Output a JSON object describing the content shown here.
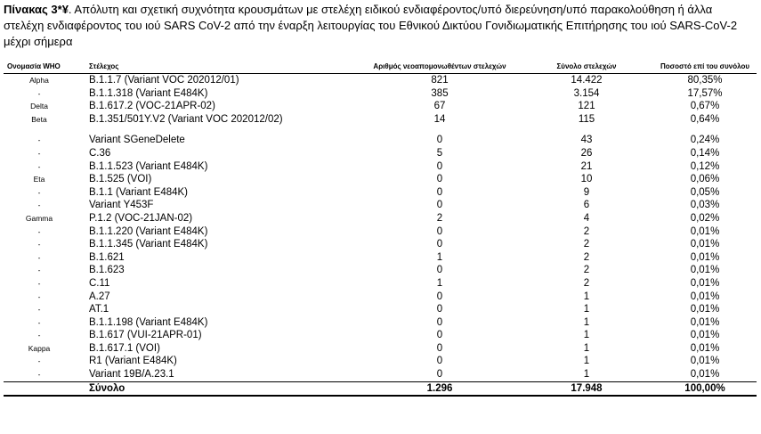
{
  "caption": {
    "label": "Πίνακας 3*¥",
    "text": ". Απόλυτη και σχετική συχνότητα κρουσμάτων με στελέχη ειδικού ενδιαφέροντος/υπό διερεύνηση/υπό παρακολούθηση ή άλλα στελέχη ενδιαφέροντος του ιού SARS CoV-2 από την έναρξη λειτουργίας του Εθνικού Δικτύου Γονιδιωματικής Επιτήρησης του ιού SARS-CoV-2 μέχρι σήμερα"
  },
  "table": {
    "header": [
      "Ονομασία WHO",
      "Στέλεχος",
      "Αριθμός νεοαπομονωθέντων στελεχών",
      "Σύνολο στελεχών",
      "Ποσοστό επί του συνόλου"
    ],
    "rows": [
      [
        "Alpha",
        "B.1.1.7 (Variant VOC 202012/01)",
        "821",
        "14.422",
        "80,35%"
      ],
      [
        "-",
        "B.1.1.318 (Variant E484K)",
        "385",
        "3.154",
        "17,57%"
      ],
      [
        "Delta",
        "B.1.617.2 (VOC-21APR-02)",
        "67",
        "121",
        "0,67%"
      ],
      [
        "Beta",
        "B.1.351/501Y.V2 (Variant VOC 202012/02)",
        "14",
        "115",
        "0,64%"
      ],
      [
        "-",
        "Variant SGeneDelete",
        "0",
        "43",
        "0,24%"
      ],
      [
        "-",
        "C.36",
        "5",
        "26",
        "0,14%"
      ],
      [
        "-",
        "B.1.1.523 (Variant E484K)",
        "0",
        "21",
        "0,12%"
      ],
      [
        "Eta",
        "B.1.525 (VOI)",
        "0",
        "10",
        "0,06%"
      ],
      [
        "-",
        "B.1.1 (Variant E484K)",
        "0",
        "9",
        "0,05%"
      ],
      [
        "-",
        "Variant Y453F",
        "0",
        "6",
        "0,03%"
      ],
      [
        "Gamma",
        "P.1.2 (VOC-21JAN-02)",
        "2",
        "4",
        "0,02%"
      ],
      [
        "-",
        "B.1.1.220 (Variant E484K)",
        "0",
        "2",
        "0,01%"
      ],
      [
        "-",
        "B.1.1.345 (Variant E484K)",
        "0",
        "2",
        "0,01%"
      ],
      [
        "-",
        "B.1.621",
        "1",
        "2",
        "0,01%"
      ],
      [
        "-",
        "B.1.623",
        "0",
        "2",
        "0,01%"
      ],
      [
        "-",
        "C.11",
        "1",
        "2",
        "0,01%"
      ],
      [
        "-",
        "A.27",
        "0",
        "1",
        "0,01%"
      ],
      [
        "-",
        "AT.1",
        "0",
        "1",
        "0,01%"
      ],
      [
        "-",
        "B.1.1.198 (Variant E484K)",
        "0",
        "1",
        "0,01%"
      ],
      [
        "-",
        "B.1.617 (VUI-21APR-01)",
        "0",
        "1",
        "0,01%"
      ],
      [
        "Kappa",
        "B.1.617.1 (VOI)",
        "0",
        "1",
        "0,01%"
      ],
      [
        "-",
        "R1 (Variant E484K)",
        "0",
        "1",
        "0,01%"
      ],
      [
        "-",
        "Variant 19B/A.23.1",
        "0",
        "1",
        "0,01%"
      ]
    ],
    "total": [
      "Σύνολο",
      "1.296",
      "17.948",
      "100,00%"
    ]
  }
}
